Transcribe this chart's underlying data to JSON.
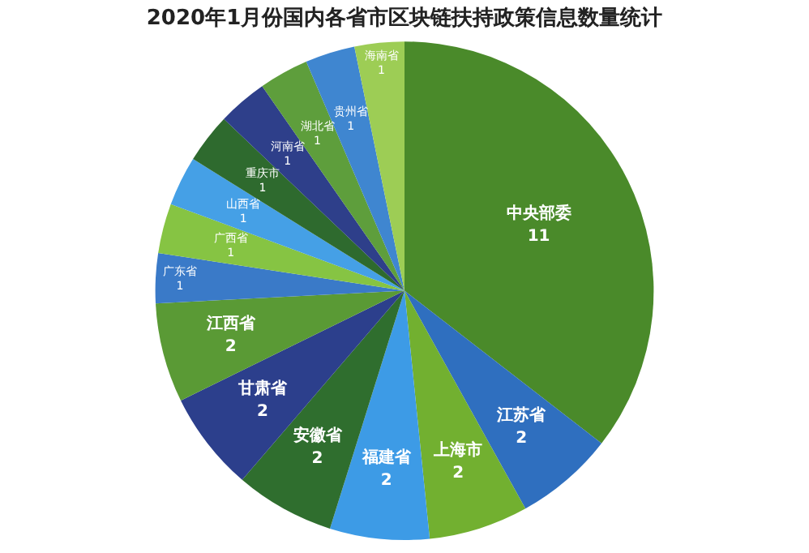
{
  "chart_data": {
    "type": "pie",
    "title": "2020年1月份国内各省市区块链扶持政策信息数量统计",
    "categories": [
      "中央部委",
      "江苏省",
      "上海市",
      "福建省",
      "安徽省",
      "甘肃省",
      "江西省",
      "广东省",
      "广西省",
      "山西省",
      "重庆市",
      "河南省",
      "湖北省",
      "贵州省",
      "海南省"
    ],
    "values": [
      11,
      2,
      2,
      2,
      2,
      2,
      2,
      1,
      1,
      1,
      1,
      1,
      1,
      1,
      1
    ],
    "colors": [
      "#4a8a2a",
      "#2f6fbf",
      "#72b030",
      "#3d9be6",
      "#2f6e2e",
      "#2c3f8c",
      "#5a9a35",
      "#3a7ac8",
      "#86c443",
      "#45a0e6",
      "#2e6a2e",
      "#2e3f8a",
      "#5e9e3c",
      "#3f86d0",
      "#9dcd55"
    ],
    "data_labels": true,
    "legend": false
  }
}
